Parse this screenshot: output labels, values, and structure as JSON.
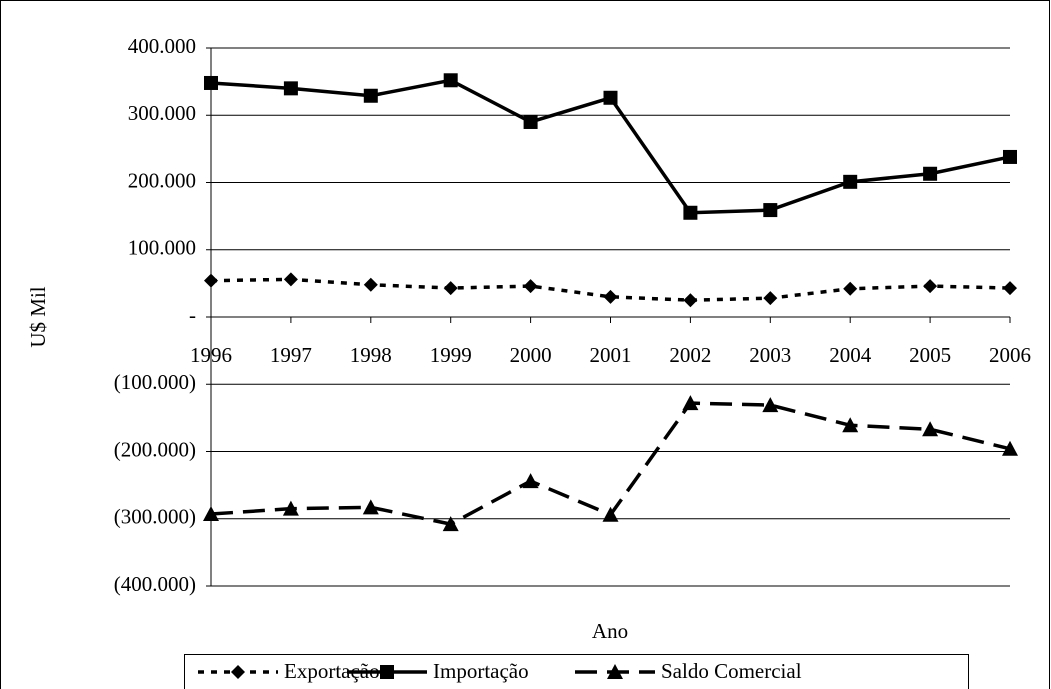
{
  "chart_data": {
    "type": "line",
    "categories": [
      "1996",
      "1997",
      "1998",
      "1999",
      "2000",
      "2001",
      "2002",
      "2003",
      "2004",
      "2005",
      "2006"
    ],
    "series": [
      {
        "name": "Exportação",
        "color": "#000000",
        "dash": "6 7",
        "marker": "diamond",
        "values": [
          54000,
          56000,
          48000,
          43000,
          46000,
          30000,
          25000,
          28000,
          42000,
          46000,
          43000
        ]
      },
      {
        "name": "Importação",
        "color": "#000000",
        "dash": "none",
        "marker": "square",
        "values": [
          348000,
          340000,
          329000,
          352000,
          290000,
          326000,
          155000,
          159000,
          201000,
          213000,
          238000
        ]
      },
      {
        "name": "Saldo Comercial",
        "color": "#000000",
        "dash": "22 10",
        "marker": "triangle",
        "values": [
          -293000,
          -285000,
          -283000,
          -308000,
          -244000,
          -294000,
          -128000,
          -131000,
          -161000,
          -167000,
          -196000
        ]
      }
    ],
    "x_label": "Ano",
    "y_label": "U$ Mil",
    "ylim": [
      -400000,
      400000
    ],
    "yticks": [
      {
        "value": 400000,
        "label": "400.000"
      },
      {
        "value": 300000,
        "label": "300.000"
      },
      {
        "value": 200000,
        "label": "200.000"
      },
      {
        "value": 100000,
        "label": "100.000"
      },
      {
        "value": 0,
        "label": "-"
      },
      {
        "value": -100000,
        "label": "(100.000)"
      },
      {
        "value": -200000,
        "label": "(200.000)"
      },
      {
        "value": -300000,
        "label": "(300.000)"
      },
      {
        "value": -400000,
        "label": "(400.000)"
      }
    ],
    "grid": true,
    "legend": "bottom"
  }
}
